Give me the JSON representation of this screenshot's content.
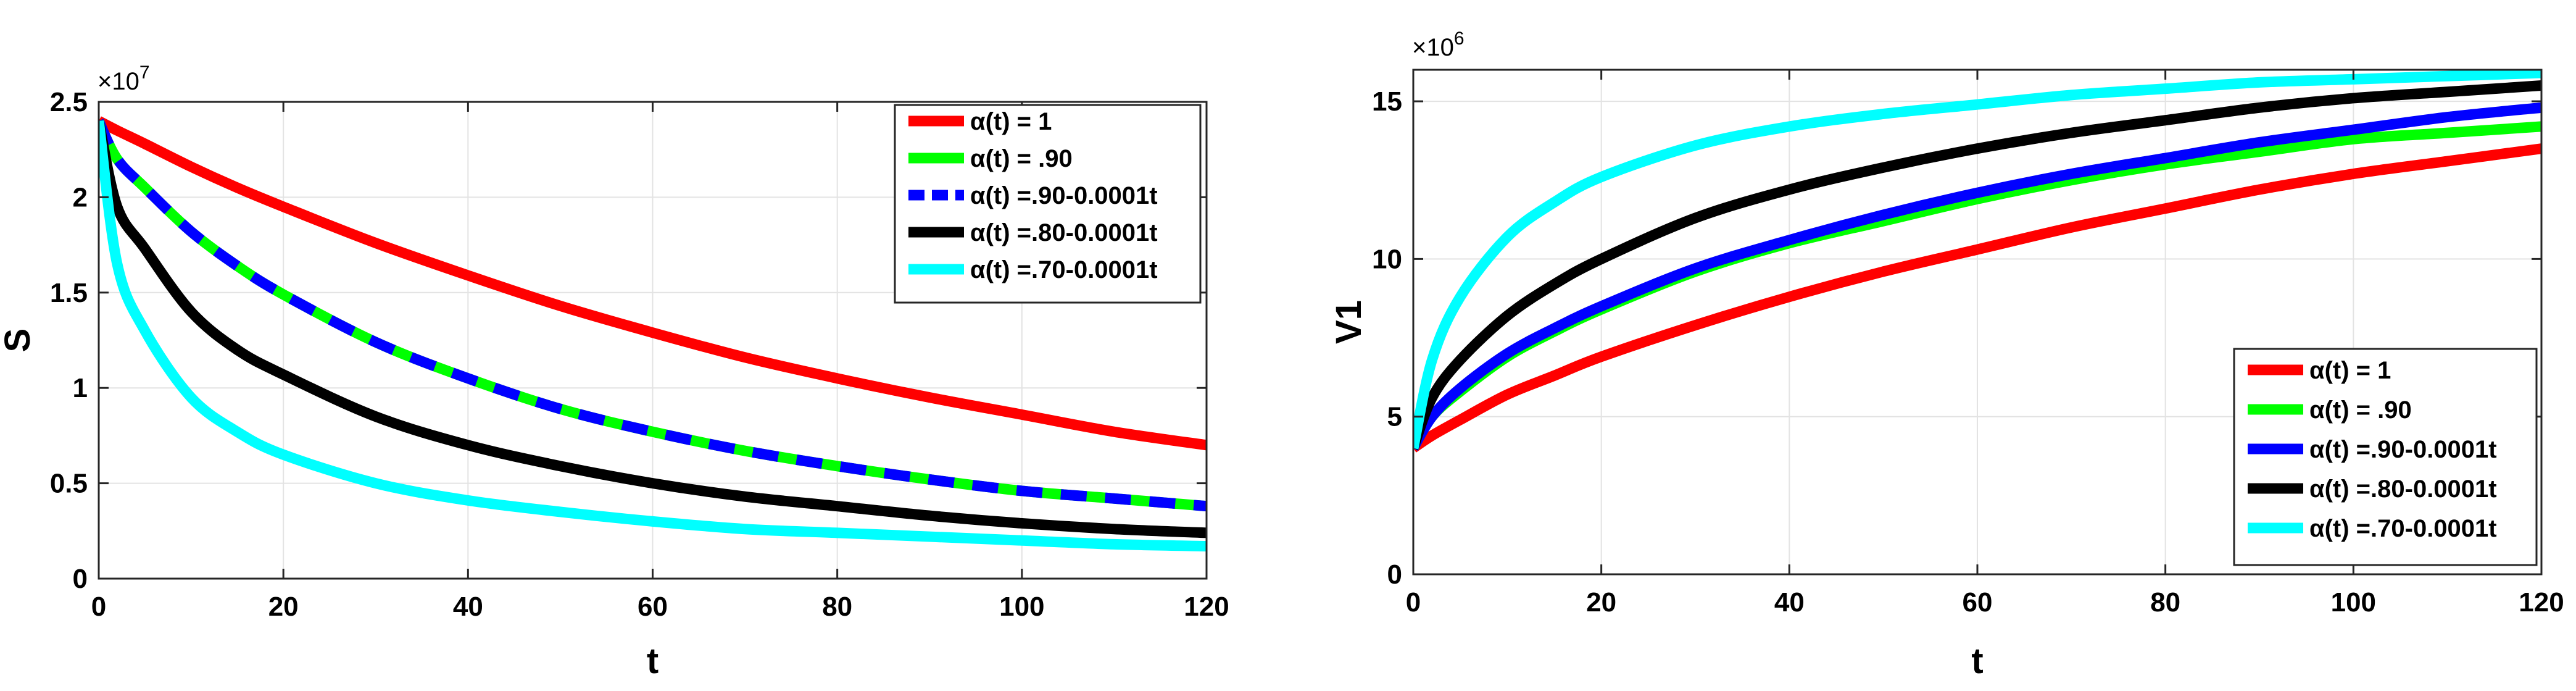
{
  "chart_data": [
    {
      "type": "line",
      "ylabel": "S",
      "xlabel": "t",
      "y_exponent_label": "×10^7",
      "y_exponent_base": "×10",
      "y_exponent_power": "7",
      "xlim": [
        0,
        120
      ],
      "ylim": [
        0,
        2.5
      ],
      "xticks": [
        "0",
        "20",
        "40",
        "60",
        "80",
        "100",
        "120"
      ],
      "yticks": [
        "0",
        "0.5",
        "1",
        "1.5",
        "2",
        "2.5"
      ],
      "grid": true,
      "legend_position": "top-right",
      "x": [
        0,
        2,
        5,
        10,
        15,
        20,
        30,
        40,
        50,
        60,
        70,
        80,
        90,
        100,
        110,
        120
      ],
      "series": [
        {
          "name": "α(t) = 1",
          "color": "#ff0000",
          "dash": false,
          "values": [
            2.4,
            2.35,
            2.28,
            2.16,
            2.05,
            1.95,
            1.76,
            1.59,
            1.43,
            1.29,
            1.16,
            1.05,
            0.95,
            0.86,
            0.77,
            0.7
          ]
        },
        {
          "name": "α(t) = .90",
          "color": "#00ff00",
          "dash": false,
          "values": [
            2.4,
            2.2,
            2.05,
            1.82,
            1.64,
            1.49,
            1.24,
            1.05,
            0.89,
            0.77,
            0.67,
            0.59,
            0.52,
            0.46,
            0.42,
            0.38
          ]
        },
        {
          "name": "α(t) =.90-0.0001t",
          "color": "#0000ff",
          "dash": true,
          "values": [
            2.4,
            2.2,
            2.05,
            1.82,
            1.64,
            1.49,
            1.24,
            1.05,
            0.89,
            0.77,
            0.67,
            0.59,
            0.52,
            0.46,
            0.42,
            0.38
          ]
        },
        {
          "name": "α(t) =.80-0.0001t",
          "color": "#000000",
          "dash": false,
          "values": [
            2.4,
            1.95,
            1.73,
            1.4,
            1.2,
            1.07,
            0.85,
            0.7,
            0.59,
            0.5,
            0.43,
            0.38,
            0.33,
            0.29,
            0.26,
            0.24
          ]
        },
        {
          "name": "α(t) =.70-0.0001t",
          "color": "#00ffff",
          "dash": false,
          "values": [
            2.4,
            1.65,
            1.3,
            0.95,
            0.77,
            0.65,
            0.5,
            0.41,
            0.35,
            0.3,
            0.26,
            0.24,
            0.22,
            0.2,
            0.18,
            0.17
          ]
        }
      ]
    },
    {
      "type": "line",
      "ylabel": "V1",
      "xlabel": "t",
      "y_exponent_label": "×10^6",
      "y_exponent_base": "×10",
      "y_exponent_power": "6",
      "xlim": [
        0,
        120
      ],
      "ylim": [
        0,
        16
      ],
      "xticks": [
        "0",
        "20",
        "40",
        "60",
        "80",
        "100",
        "120"
      ],
      "yticks": [
        "0",
        "5",
        "10",
        "15"
      ],
      "ytick_values": [
        0,
        5,
        10,
        15
      ],
      "grid": true,
      "legend_position": "bottom-right",
      "x": [
        0,
        2,
        5,
        10,
        15,
        20,
        30,
        40,
        50,
        60,
        70,
        80,
        90,
        100,
        110,
        120
      ],
      "series": [
        {
          "name": "α(t) = 1",
          "color": "#ff0000",
          "dash": false,
          "values": [
            4.0,
            4.4,
            4.9,
            5.7,
            6.3,
            6.9,
            7.9,
            8.8,
            9.6,
            10.3,
            11.0,
            11.6,
            12.2,
            12.7,
            13.1,
            13.5
          ]
        },
        {
          "name": "α(t) = .90",
          "color": "#00ff00",
          "dash": false,
          "values": [
            4.0,
            5.0,
            5.8,
            6.9,
            7.7,
            8.4,
            9.6,
            10.5,
            11.2,
            11.9,
            12.5,
            13.0,
            13.4,
            13.8,
            14.0,
            14.2
          ]
        },
        {
          "name": "α(t) =.90-0.0001t",
          "color": "#0000ff",
          "dash": false,
          "values": [
            4.0,
            5.0,
            5.9,
            7.0,
            7.8,
            8.5,
            9.7,
            10.6,
            11.4,
            12.1,
            12.7,
            13.2,
            13.7,
            14.1,
            14.5,
            14.8
          ]
        },
        {
          "name": "α(t) =.80-0.0001t",
          "color": "#000000",
          "dash": false,
          "values": [
            4.0,
            5.6,
            6.8,
            8.2,
            9.2,
            10.0,
            11.3,
            12.2,
            12.9,
            13.5,
            14.0,
            14.4,
            14.8,
            15.1,
            15.3,
            15.5
          ]
        },
        {
          "name": "α(t) =.70-0.0001t",
          "color": "#00ffff",
          "dash": false,
          "values": [
            4.0,
            6.8,
            8.8,
            10.7,
            11.8,
            12.6,
            13.6,
            14.2,
            14.6,
            14.9,
            15.2,
            15.4,
            15.6,
            15.7,
            15.8,
            15.9
          ]
        }
      ]
    }
  ]
}
